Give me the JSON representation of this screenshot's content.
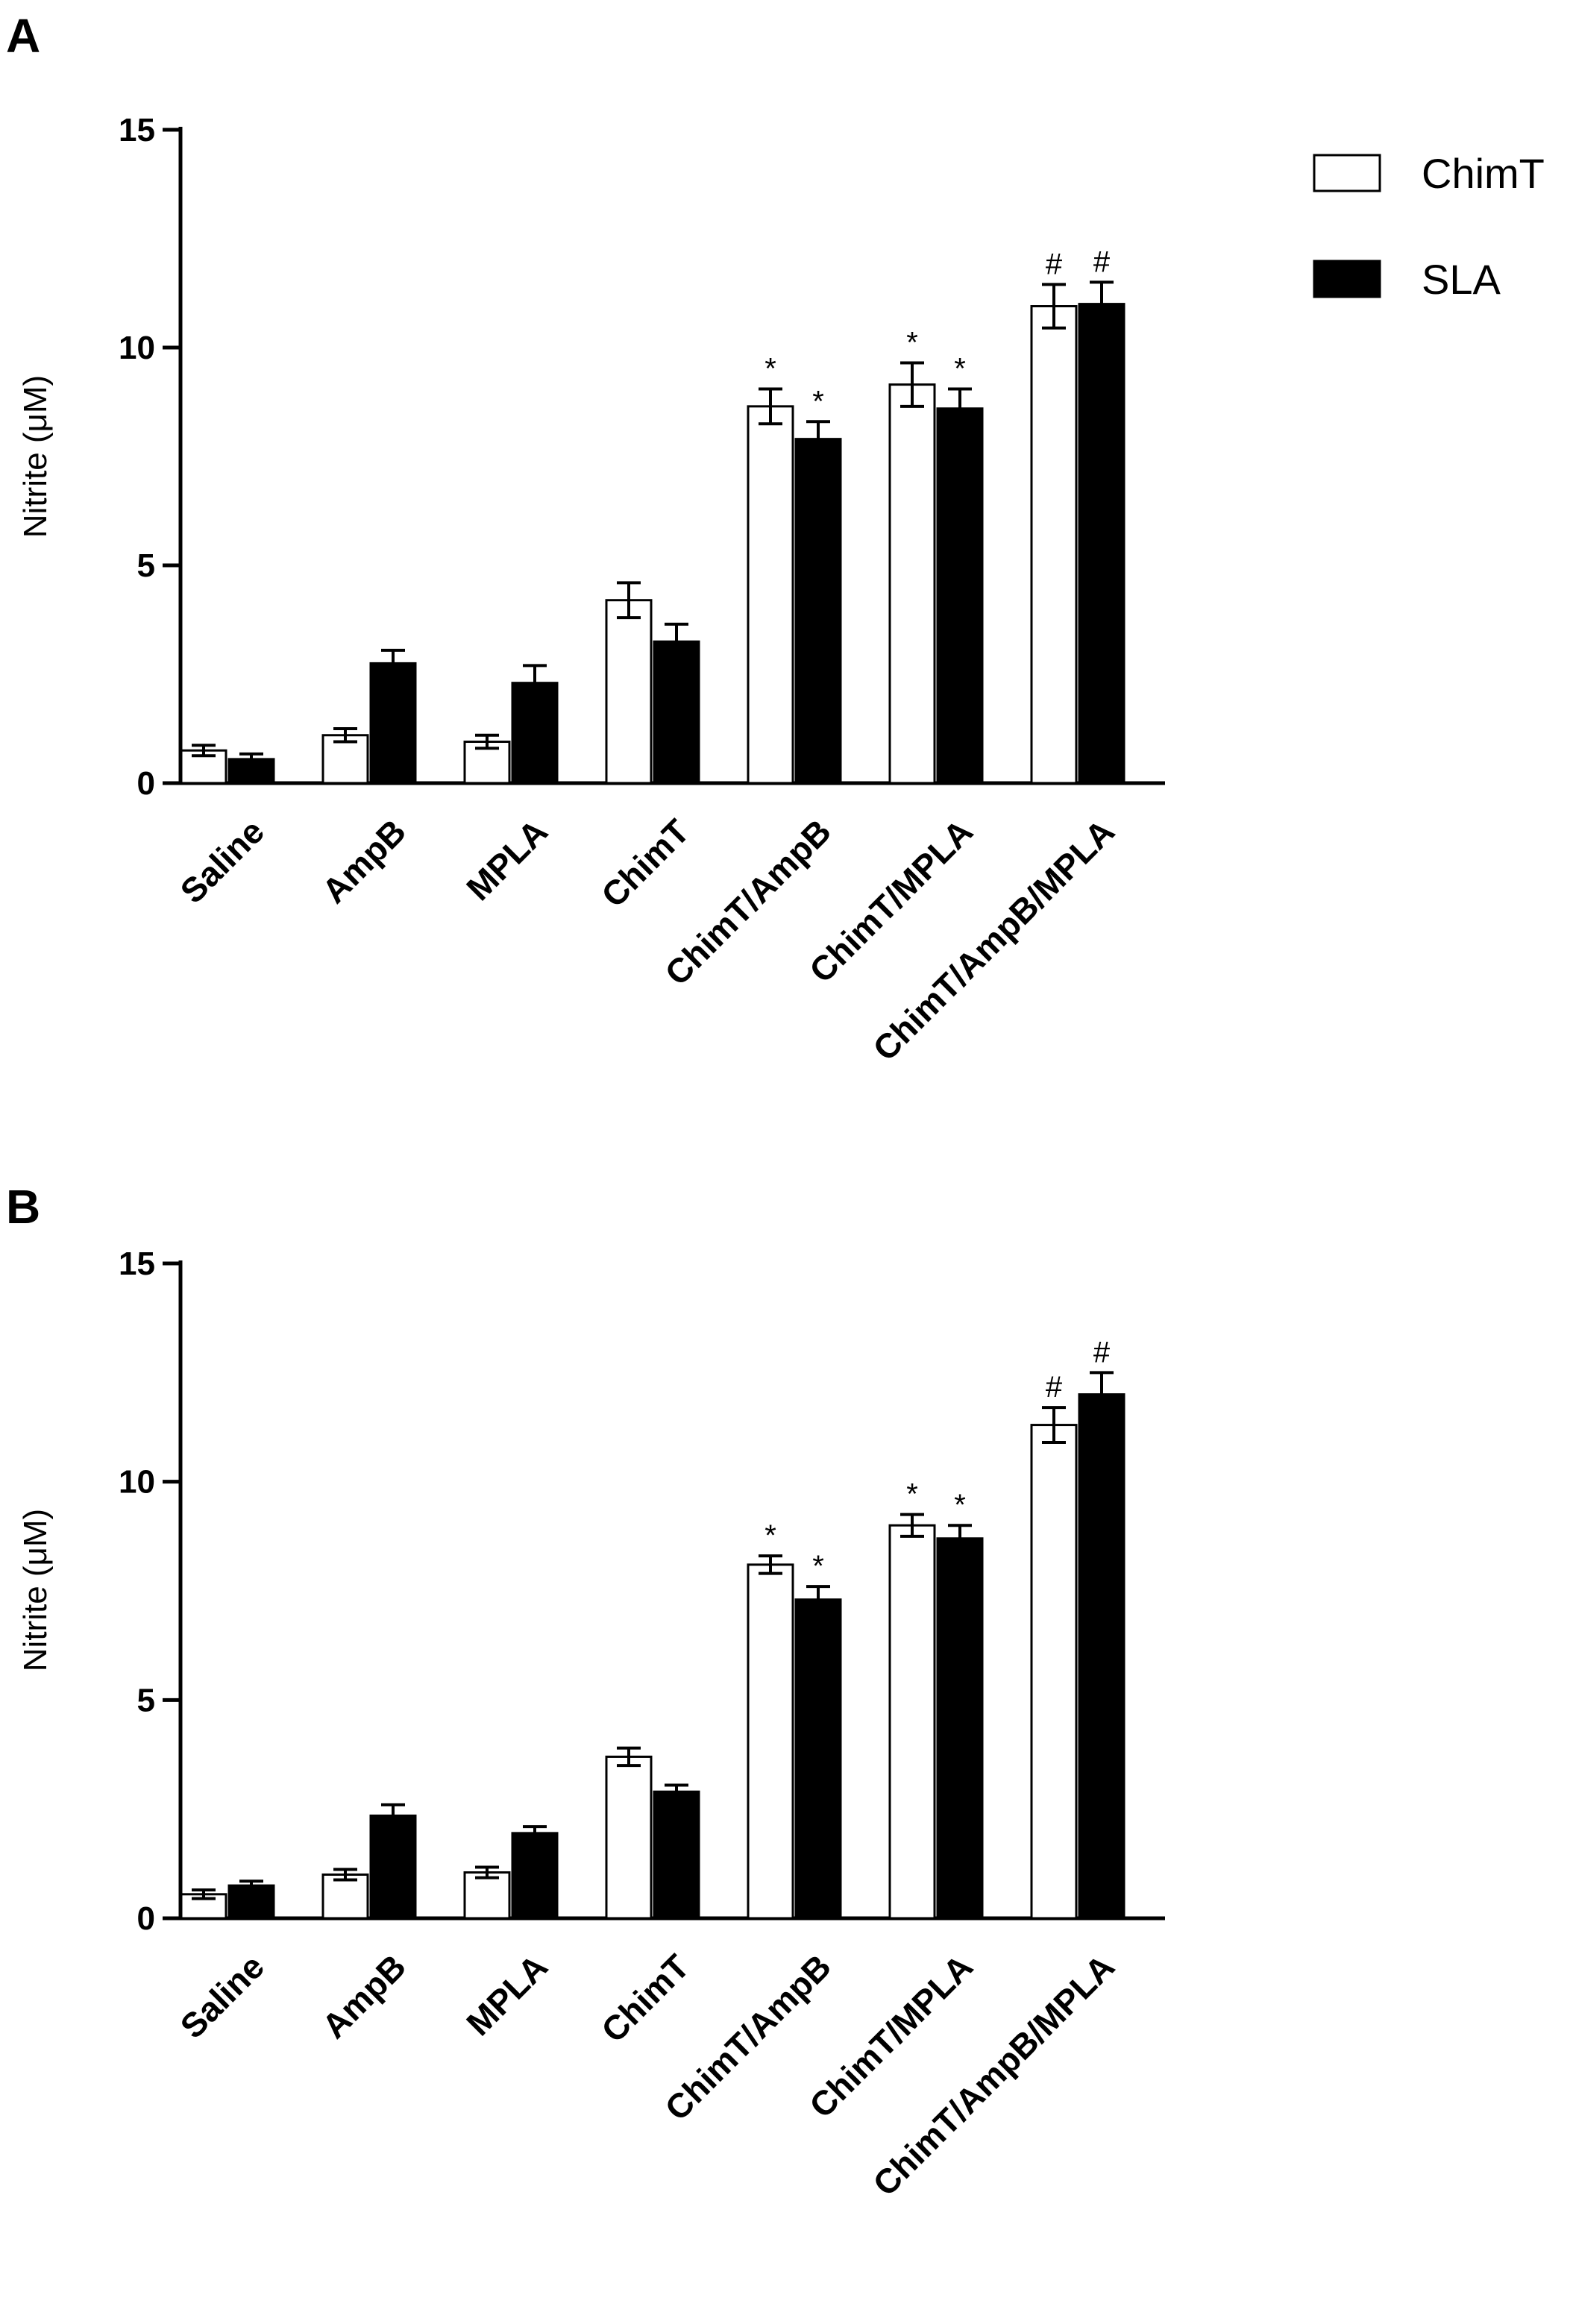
{
  "legend": [
    {
      "name": "ChimT",
      "fill": "#ffffff"
    },
    {
      "name": "SLA",
      "fill": "#000000"
    }
  ],
  "chart_data": [
    {
      "panel": "A",
      "type": "bar",
      "ylabel": "Nitrite (μM)",
      "ylim": [
        0,
        15
      ],
      "yticks": [
        0,
        5,
        10,
        15
      ],
      "categories": [
        "Saline",
        "AmpB",
        "MPLA",
        "ChimT",
        "ChimT/AmpB",
        "ChimT/MPLA",
        "ChimT/AmpB/MPLA"
      ],
      "series": [
        {
          "name": "ChimT",
          "values": [
            0.75,
            1.1,
            0.95,
            4.2,
            8.65,
            9.15,
            10.95
          ],
          "errors": [
            0.12,
            0.15,
            0.15,
            0.4,
            0.4,
            0.5,
            0.5
          ],
          "marks": [
            "",
            "",
            "",
            "",
            "*",
            "*",
            "#"
          ]
        },
        {
          "name": "SLA",
          "values": [
            0.55,
            2.75,
            2.3,
            3.25,
            7.9,
            8.6,
            11.0
          ],
          "errors": [
            0.12,
            0.3,
            0.4,
            0.4,
            0.4,
            0.45,
            0.5
          ],
          "marks": [
            "",
            "",
            "",
            "",
            "*",
            "*",
            "#"
          ]
        }
      ]
    },
    {
      "panel": "B",
      "type": "bar",
      "ylabel": "Nitrite (μM)",
      "ylim": [
        0,
        15
      ],
      "yticks": [
        0,
        5,
        10,
        15
      ],
      "categories": [
        "Saline",
        "AmpB",
        "MPLA",
        "ChimT",
        "ChimT/AmpB",
        "ChimT/MPLA",
        "ChimT/AmpB/MPLA"
      ],
      "series": [
        {
          "name": "ChimT",
          "values": [
            0.55,
            1.0,
            1.05,
            3.7,
            8.1,
            9.0,
            11.3
          ],
          "errors": [
            0.1,
            0.12,
            0.12,
            0.2,
            0.2,
            0.25,
            0.4
          ],
          "marks": [
            "",
            "",
            "",
            "",
            "*",
            "*",
            "#"
          ]
        },
        {
          "name": "SLA",
          "values": [
            0.75,
            2.35,
            1.95,
            2.9,
            7.3,
            8.7,
            12.0
          ],
          "errors": [
            0.1,
            0.25,
            0.15,
            0.15,
            0.3,
            0.3,
            0.5
          ],
          "marks": [
            "",
            "",
            "",
            "",
            "*",
            "*",
            "#"
          ]
        }
      ]
    }
  ]
}
